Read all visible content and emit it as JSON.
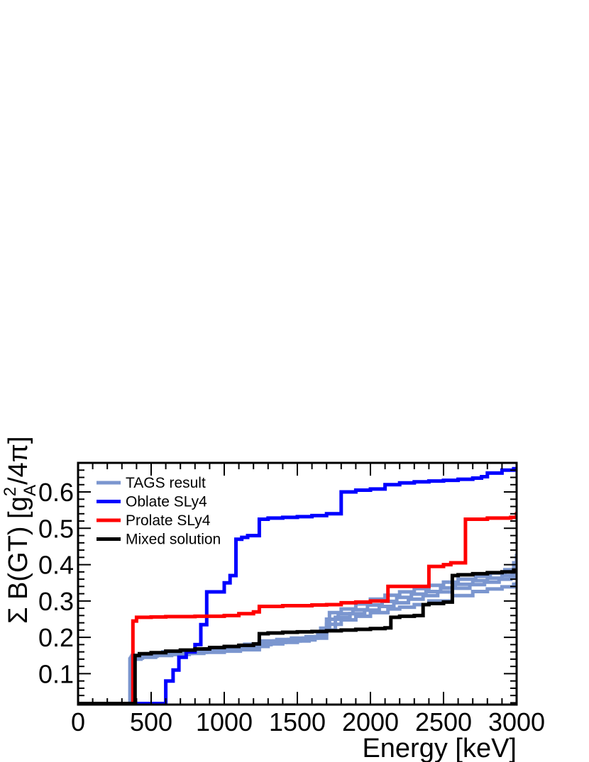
{
  "chart_data": {
    "type": "line",
    "xlabel": "Energy [keV]",
    "ylabel": "Σ B(GT) [g_A²/4π]",
    "ylabel_main": "Σ B(GT) [g",
    "ylabel_sup": "2",
    "ylabel_sub": "A",
    "ylabel_tail": "/4π]",
    "xlim": [
      0,
      3000
    ],
    "ylim": [
      0.015,
      0.68
    ],
    "x_ticks": [
      0,
      500,
      1000,
      1500,
      2000,
      2500,
      3000
    ],
    "x_tick_labels": [
      "0",
      "500",
      "1000",
      "1500",
      "2000",
      "2500",
      "3000"
    ],
    "y_ticks": [
      0.1,
      0.2,
      0.3,
      0.4,
      0.5,
      0.6
    ],
    "y_tick_labels": [
      "0.1",
      "0.2",
      "0.3",
      "0.4",
      "0.5",
      "0.6"
    ],
    "grid": false,
    "legend_position": "top-left",
    "legend": [
      "TAGS result",
      "Oblate SLy4",
      "Prolate SLy4",
      "Mixed solution"
    ],
    "series": [
      {
        "name": "TAGS result",
        "color": "#7b96cf",
        "width": 5,
        "x": [
          0,
          355,
          355,
          430,
          530,
          640,
          760,
          860,
          1000,
          1110,
          1240,
          1300,
          1400,
          1500,
          1580,
          1620,
          1700,
          1800,
          1900,
          2000,
          2120,
          2200,
          2300,
          2400,
          2560,
          2700,
          2800,
          2900,
          2980,
          3000
        ],
        "y": [
          0.018,
          0.018,
          0.14,
          0.145,
          0.15,
          0.153,
          0.156,
          0.159,
          0.162,
          0.166,
          0.175,
          0.182,
          0.186,
          0.19,
          0.193,
          0.198,
          0.236,
          0.248,
          0.258,
          0.268,
          0.278,
          0.283,
          0.29,
          0.3,
          0.315,
          0.326,
          0.333,
          0.339,
          0.346,
          0.352
        ]
      },
      {
        "name": "TAGS result",
        "color": "#7b96cf",
        "width": 5,
        "x": [
          0,
          360,
          360,
          440,
          540,
          660,
          780,
          880,
          1000,
          1100,
          1240,
          1320,
          1420,
          1520,
          1620,
          1680,
          1760,
          1860,
          1960,
          2060,
          2160,
          2260,
          2360,
          2460,
          2560,
          2680,
          2780,
          2880,
          2960,
          3000
        ],
        "y": [
          0.018,
          0.018,
          0.143,
          0.148,
          0.153,
          0.156,
          0.159,
          0.162,
          0.165,
          0.17,
          0.18,
          0.186,
          0.19,
          0.194,
          0.2,
          0.22,
          0.255,
          0.265,
          0.275,
          0.285,
          0.295,
          0.305,
          0.315,
          0.325,
          0.335,
          0.345,
          0.352,
          0.36,
          0.366,
          0.372
        ]
      },
      {
        "name": "TAGS result",
        "color": "#7b96cf",
        "width": 5,
        "x": [
          0,
          365,
          365,
          450,
          560,
          680,
          800,
          900,
          1020,
          1120,
          1240,
          1340,
          1440,
          1540,
          1640,
          1700,
          1780,
          1880,
          1980,
          2080,
          2180,
          2280,
          2380,
          2480,
          2580,
          2700,
          2800,
          2900,
          2970,
          3000
        ],
        "y": [
          0.018,
          0.018,
          0.146,
          0.151,
          0.156,
          0.159,
          0.163,
          0.167,
          0.171,
          0.176,
          0.186,
          0.19,
          0.194,
          0.198,
          0.21,
          0.25,
          0.265,
          0.276,
          0.289,
          0.299,
          0.31,
          0.319,
          0.326,
          0.336,
          0.346,
          0.356,
          0.363,
          0.37,
          0.376,
          0.382
        ]
      },
      {
        "name": "TAGS result",
        "color": "#7b96cf",
        "width": 5,
        "x": [
          0,
          370,
          370,
          460,
          580,
          700,
          820,
          920,
          1040,
          1140,
          1240,
          1360,
          1460,
          1560,
          1660,
          1720,
          1800,
          1900,
          2000,
          2100,
          2200,
          2300,
          2400,
          2500,
          2600,
          2720,
          2820,
          2920,
          2980,
          3000
        ],
        "y": [
          0.018,
          0.018,
          0.15,
          0.155,
          0.16,
          0.163,
          0.167,
          0.171,
          0.175,
          0.181,
          0.19,
          0.194,
          0.198,
          0.202,
          0.225,
          0.268,
          0.278,
          0.292,
          0.305,
          0.316,
          0.325,
          0.334,
          0.343,
          0.352,
          0.36,
          0.368,
          0.377,
          0.386,
          0.405,
          0.43
        ]
      },
      {
        "name": "Oblate SLy4",
        "color": "#0000ff",
        "width": 5,
        "x": [
          0,
          360,
          600,
          600,
          650,
          690,
          740,
          800,
          840,
          880,
          1000,
          1040,
          1080,
          1120,
          1160,
          1240,
          1300,
          1400,
          1500,
          1600,
          1700,
          1800,
          1900,
          2000,
          2100,
          2200,
          2300,
          2400,
          2500,
          2600,
          2700,
          2760,
          2800,
          2900,
          2980,
          3000
        ],
        "y": [
          0.018,
          0.018,
          0.018,
          0.08,
          0.11,
          0.145,
          0.16,
          0.18,
          0.235,
          0.325,
          0.35,
          0.37,
          0.47,
          0.475,
          0.48,
          0.525,
          0.528,
          0.53,
          0.532,
          0.535,
          0.54,
          0.6,
          0.605,
          0.608,
          0.62,
          0.625,
          0.628,
          0.63,
          0.632,
          0.635,
          0.638,
          0.642,
          0.652,
          0.66,
          0.664,
          0.668
        ]
      },
      {
        "name": "Prolate SLy4",
        "color": "#ff0000",
        "width": 5,
        "x": [
          0,
          375,
          375,
          400,
          400,
          500,
          600,
          800,
          1000,
          1100,
          1200,
          1240,
          1400,
          1600,
          1700,
          1800,
          1900,
          2000,
          2120,
          2200,
          2350,
          2400,
          2500,
          2550,
          2650,
          2800,
          2960,
          3000
        ],
        "y": [
          0.018,
          0.018,
          0.245,
          0.25,
          0.255,
          0.256,
          0.257,
          0.258,
          0.26,
          0.265,
          0.27,
          0.285,
          0.287,
          0.289,
          0.29,
          0.295,
          0.297,
          0.3,
          0.34,
          0.34,
          0.34,
          0.395,
          0.4,
          0.405,
          0.525,
          0.528,
          0.53,
          0.545
        ]
      },
      {
        "name": "Mixed solution",
        "color": "#000000",
        "width": 5,
        "x": [
          0,
          390,
          390,
          420,
          500,
          600,
          700,
          800,
          900,
          1000,
          1100,
          1200,
          1240,
          1300,
          1400,
          1500,
          1600,
          1700,
          1800,
          1900,
          2000,
          2100,
          2140,
          2200,
          2300,
          2360,
          2400,
          2500,
          2560,
          2600,
          2700,
          2800,
          2900,
          2980,
          3000
        ],
        "y": [
          0.018,
          0.018,
          0.15,
          0.155,
          0.158,
          0.162,
          0.165,
          0.168,
          0.172,
          0.175,
          0.178,
          0.182,
          0.21,
          0.212,
          0.214,
          0.215,
          0.216,
          0.218,
          0.22,
          0.222,
          0.224,
          0.226,
          0.255,
          0.258,
          0.26,
          0.29,
          0.293,
          0.297,
          0.37,
          0.372,
          0.375,
          0.378,
          0.38,
          0.385,
          0.39
        ]
      }
    ]
  }
}
